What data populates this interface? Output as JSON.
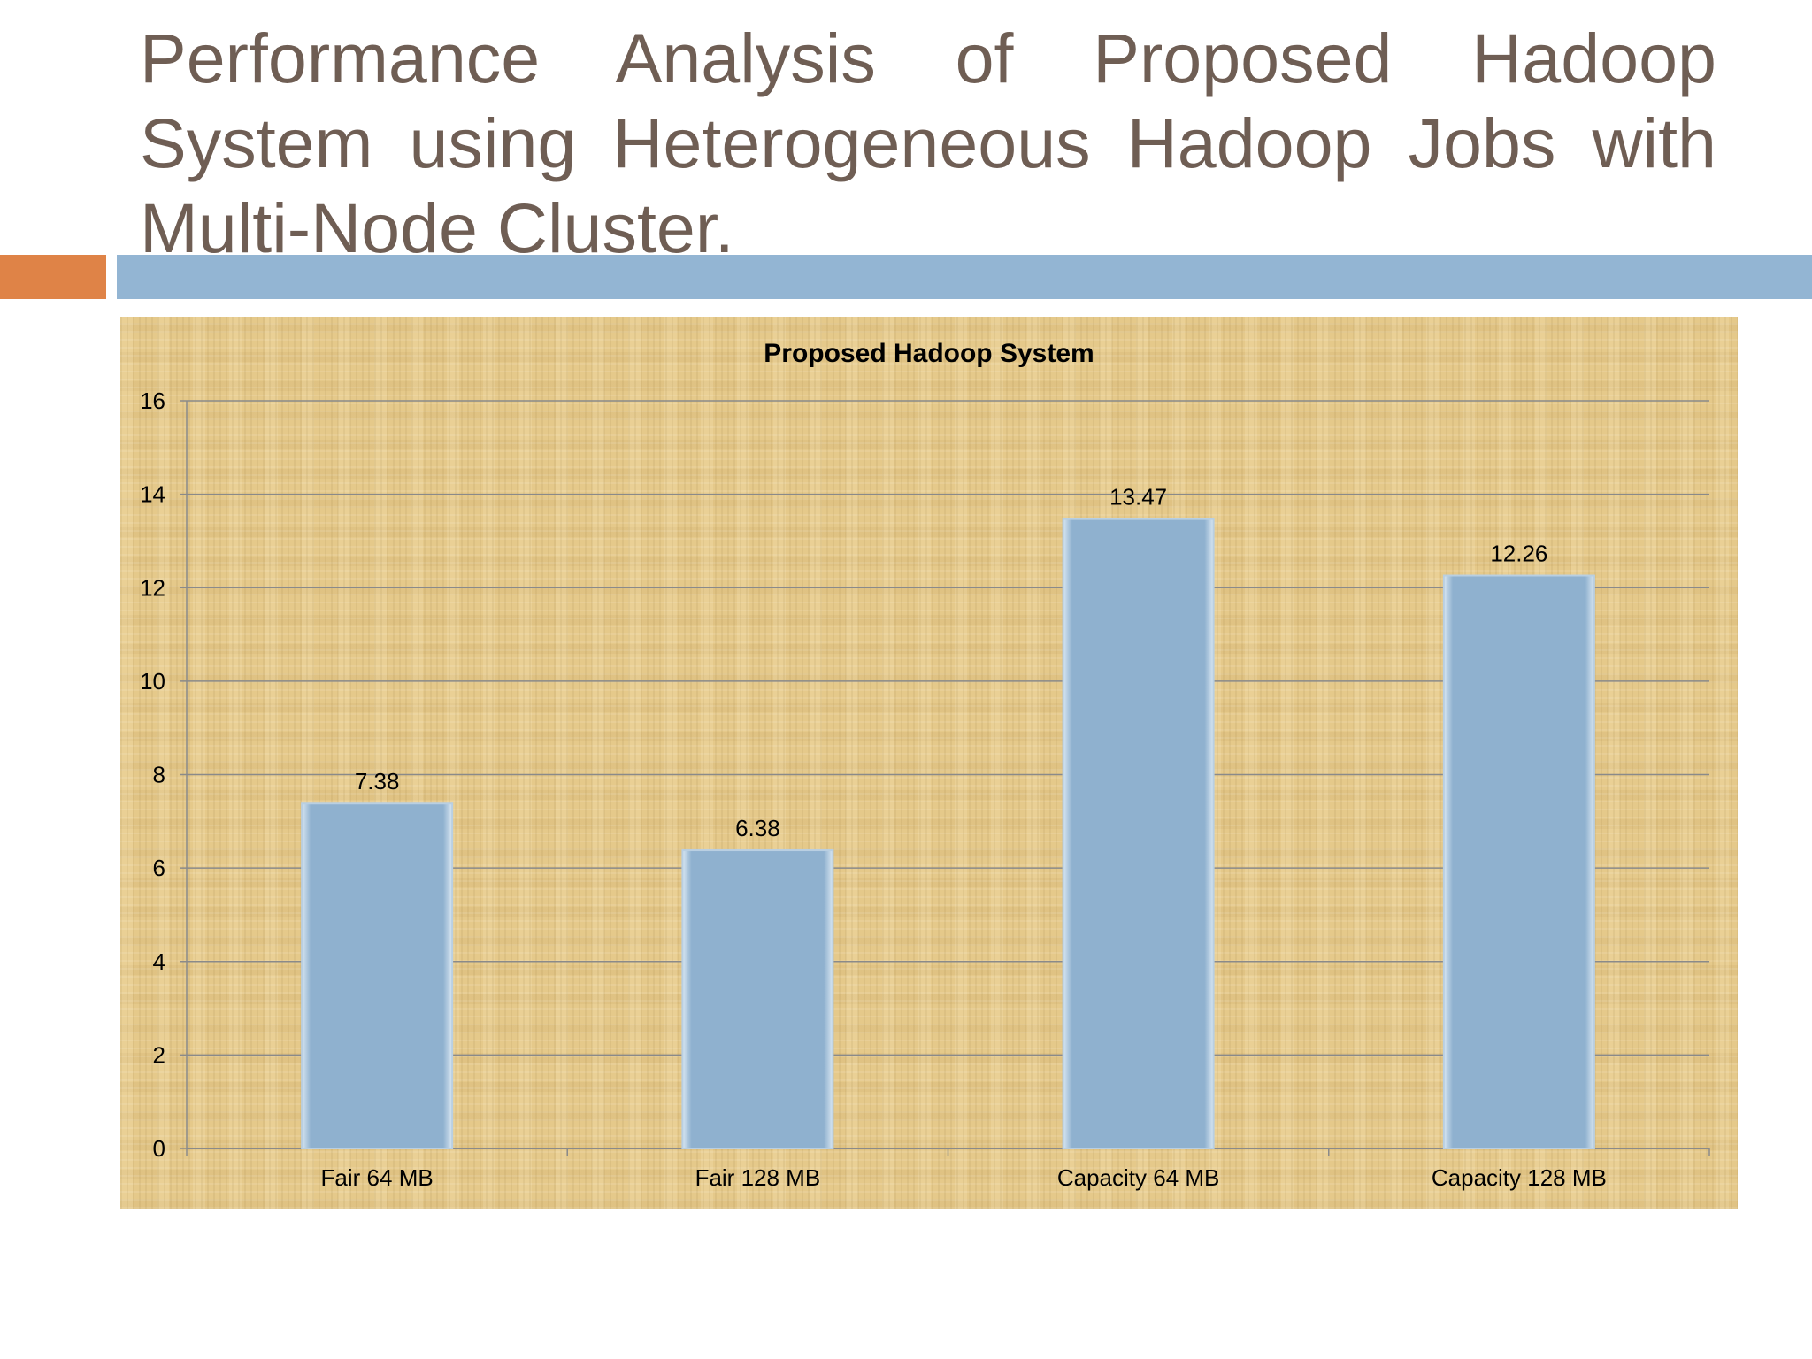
{
  "slide": {
    "title": "Performance Analysis of Proposed Hadoop System using Heterogeneous Hadoop Jobs with Multi-Node Cluster."
  },
  "colors": {
    "title_text": "#6f5e54",
    "accent_orange": "#df8347",
    "accent_blue": "#93b5d3",
    "bar_fill": "#8fb1cf"
  },
  "chart_data": {
    "type": "bar",
    "title": "Proposed Hadoop System",
    "categories": [
      "Fair 64 MB",
      "Fair 128 MB",
      "Capacity 64 MB",
      "Capacity 128 MB"
    ],
    "values": [
      7.38,
      6.38,
      13.47,
      12.26
    ],
    "data_labels": [
      "7.38",
      "6.38",
      "13.47",
      "12.26"
    ],
    "ylim": [
      0,
      16
    ],
    "yticks": [
      0,
      2,
      4,
      6,
      8,
      10,
      12,
      14,
      16
    ],
    "grid": true,
    "legend": "none"
  }
}
